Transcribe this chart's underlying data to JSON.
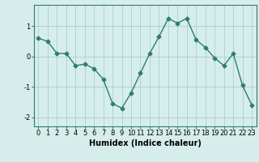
{
  "x": [
    0,
    1,
    2,
    3,
    4,
    5,
    6,
    7,
    8,
    9,
    10,
    11,
    12,
    13,
    14,
    15,
    16,
    17,
    18,
    19,
    20,
    21,
    22,
    23
  ],
  "y": [
    0.6,
    0.5,
    0.1,
    0.1,
    -0.3,
    -0.25,
    -0.4,
    -0.75,
    -1.55,
    -1.7,
    -1.2,
    -0.55,
    0.1,
    0.65,
    1.25,
    1.1,
    1.25,
    0.55,
    0.3,
    -0.05,
    -0.3,
    0.1,
    -0.95,
    -1.6
  ],
  "line_color": "#2e7d6e",
  "marker": "D",
  "markersize": 2.5,
  "linewidth": 1.0,
  "bg_color": "#d6eeeb",
  "grid_color": "#aacfcb",
  "xlabel": "Humidex (Indice chaleur)",
  "xlabel_fontsize": 7,
  "xlabel_fontweight": "bold",
  "yticks": [
    -2,
    -1,
    0,
    1
  ],
  "xticks": [
    0,
    1,
    2,
    3,
    4,
    5,
    6,
    7,
    8,
    9,
    10,
    11,
    12,
    13,
    14,
    15,
    16,
    17,
    18,
    19,
    20,
    21,
    22,
    23
  ],
  "tick_fontsize": 6,
  "ylim": [
    -2.3,
    1.7
  ],
  "xlim": [
    -0.5,
    23.5
  ]
}
